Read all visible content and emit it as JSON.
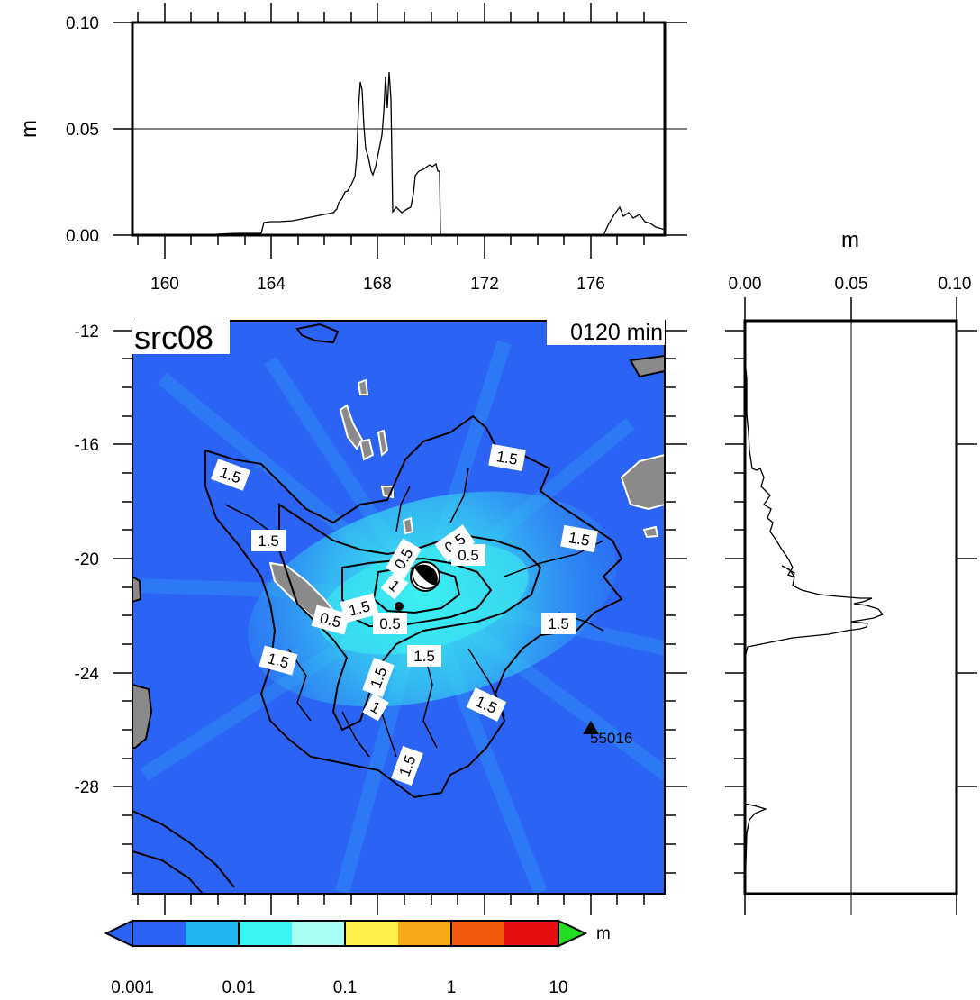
{
  "panel": {
    "source_label": "src08",
    "time_label": "0120 min"
  },
  "top_profile": {
    "y_axis_title": "m",
    "y_ticks": [
      "0.00",
      "0.05",
      "0.10"
    ],
    "x_ticks": [
      "160",
      "164",
      "168",
      "172",
      "176"
    ]
  },
  "right_profile": {
    "x_axis_title": "m",
    "x_ticks": [
      "0.00",
      "0.05",
      "0.10"
    ]
  },
  "map": {
    "lat_ticks": [
      "-12",
      "-16",
      "-20",
      "-24",
      "-28"
    ],
    "contour_labels": [
      "1.5",
      "1.5",
      "1.5",
      "1.5",
      "1.5",
      "1.5",
      "1.5",
      "1.5",
      "1.5",
      "1.5",
      "1.5",
      "1",
      "1",
      "0.5",
      "0.5",
      "0.5",
      "0.5",
      "0.5"
    ],
    "station": {
      "label": "55016"
    },
    "colors": {
      "ocean": "#2b63f4",
      "land": "#8a8a8a",
      "energy": "#3df2f0"
    }
  },
  "colorbar": {
    "unit": "m",
    "tick_labels": [
      "0.001",
      "0.01",
      "0.1",
      "1",
      "10"
    ],
    "colors": [
      "#2b63f4",
      "#21b6f2",
      "#3af5f0",
      "#a8fff3",
      "#fff04a",
      "#f7a816",
      "#f35a10",
      "#e80e10"
    ],
    "under_color": "#2b63f4",
    "over_color": "#22dd22"
  }
}
